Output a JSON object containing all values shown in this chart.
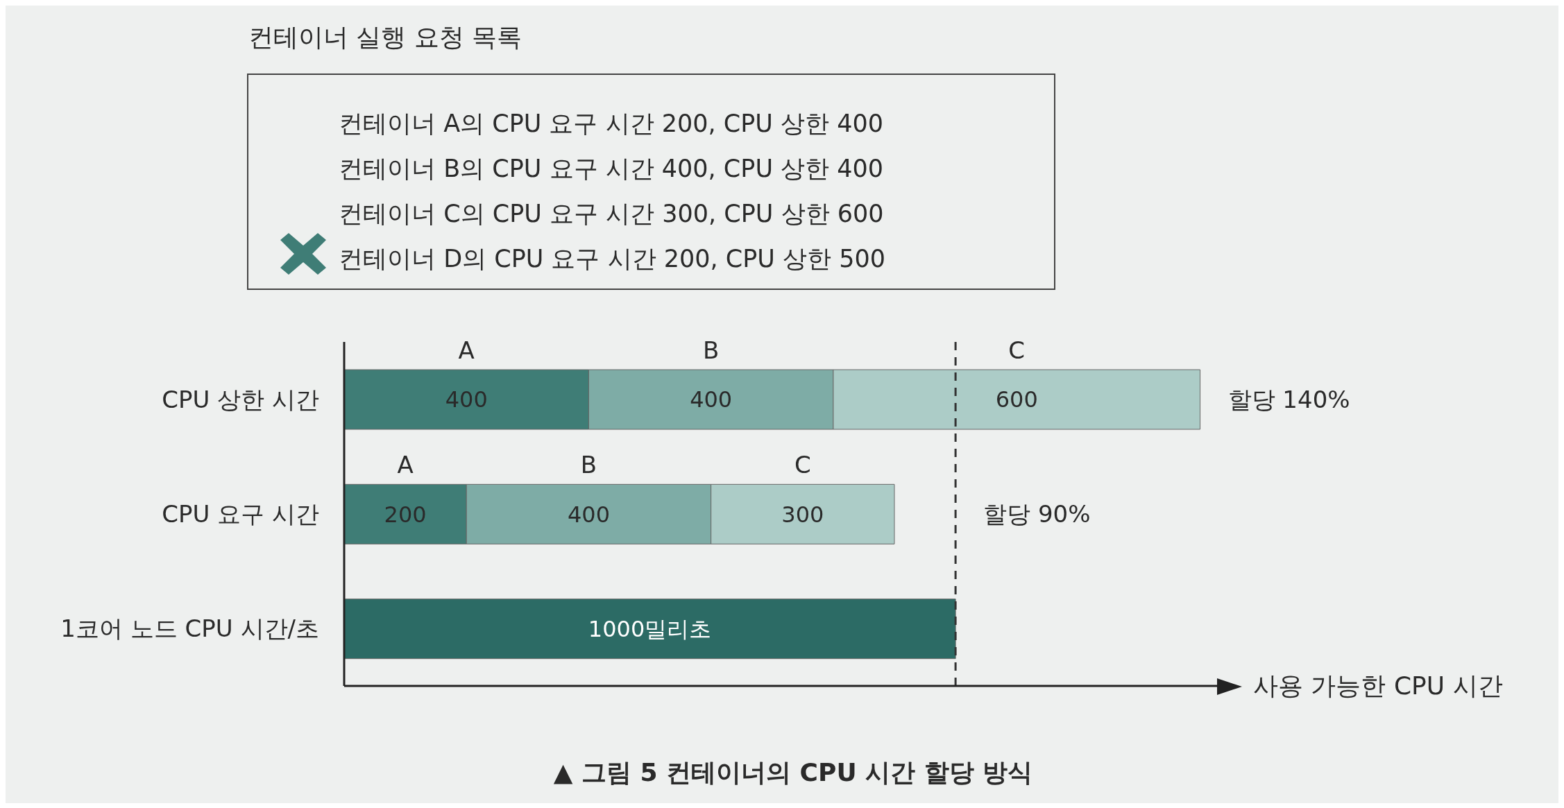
{
  "chart_data": {
    "type": "bar",
    "orientation": "horizontal",
    "stacked": true,
    "title": "▲ 그림 5 컨테이너의 CPU 시간 할당 방식",
    "xlabel": "사용 가능한 CPU 시간",
    "categories": [
      "CPU 상한 시간",
      "CPU 요구 시간",
      "1코어 노드 CPU 시간/초"
    ],
    "series": [
      {
        "name": "A",
        "color": "#3f7d76",
        "values": [
          400,
          200,
          null
        ],
        "value_labels": [
          "400",
          "200",
          null
        ]
      },
      {
        "name": "B",
        "color": "#7eaca6",
        "values": [
          400,
          400,
          null
        ],
        "value_labels": [
          "400",
          "400",
          null
        ]
      },
      {
        "name": "C",
        "color": "#acccc7",
        "values": [
          600,
          300,
          null
        ],
        "value_labels": [
          "600",
          "300",
          null
        ]
      },
      {
        "color": "#2c6b65",
        "values": [
          null,
          null,
          1000
        ],
        "value_labels": [
          null,
          null,
          "1000밀리초"
        ]
      }
    ],
    "xlim": [
      0,
      1430
    ],
    "tick_labels": "y",
    "ref_lines": [
      {
        "axis": "x",
        "value": 1000,
        "color": "#333333",
        "line_style": "dashed"
      }
    ],
    "annotations": [
      "컨테이너 실행 요청 목록",
      "컨테이너 A의 CPU 요구 시간 200, CPU 상한 400",
      "컨테이너 B의 CPU 요구 시간 400, CPU 상한 400",
      "컨테이너 C의 CPU 요구 시간 300, CPU 상한 600",
      "컨테이너 D의 CPU 요구 시간 200, CPU 상한 500",
      {
        "text": "할당 140%",
        "x": 1400,
        "y": "CPU 상한 시간"
      },
      "할당 90%"
    ]
  }
}
